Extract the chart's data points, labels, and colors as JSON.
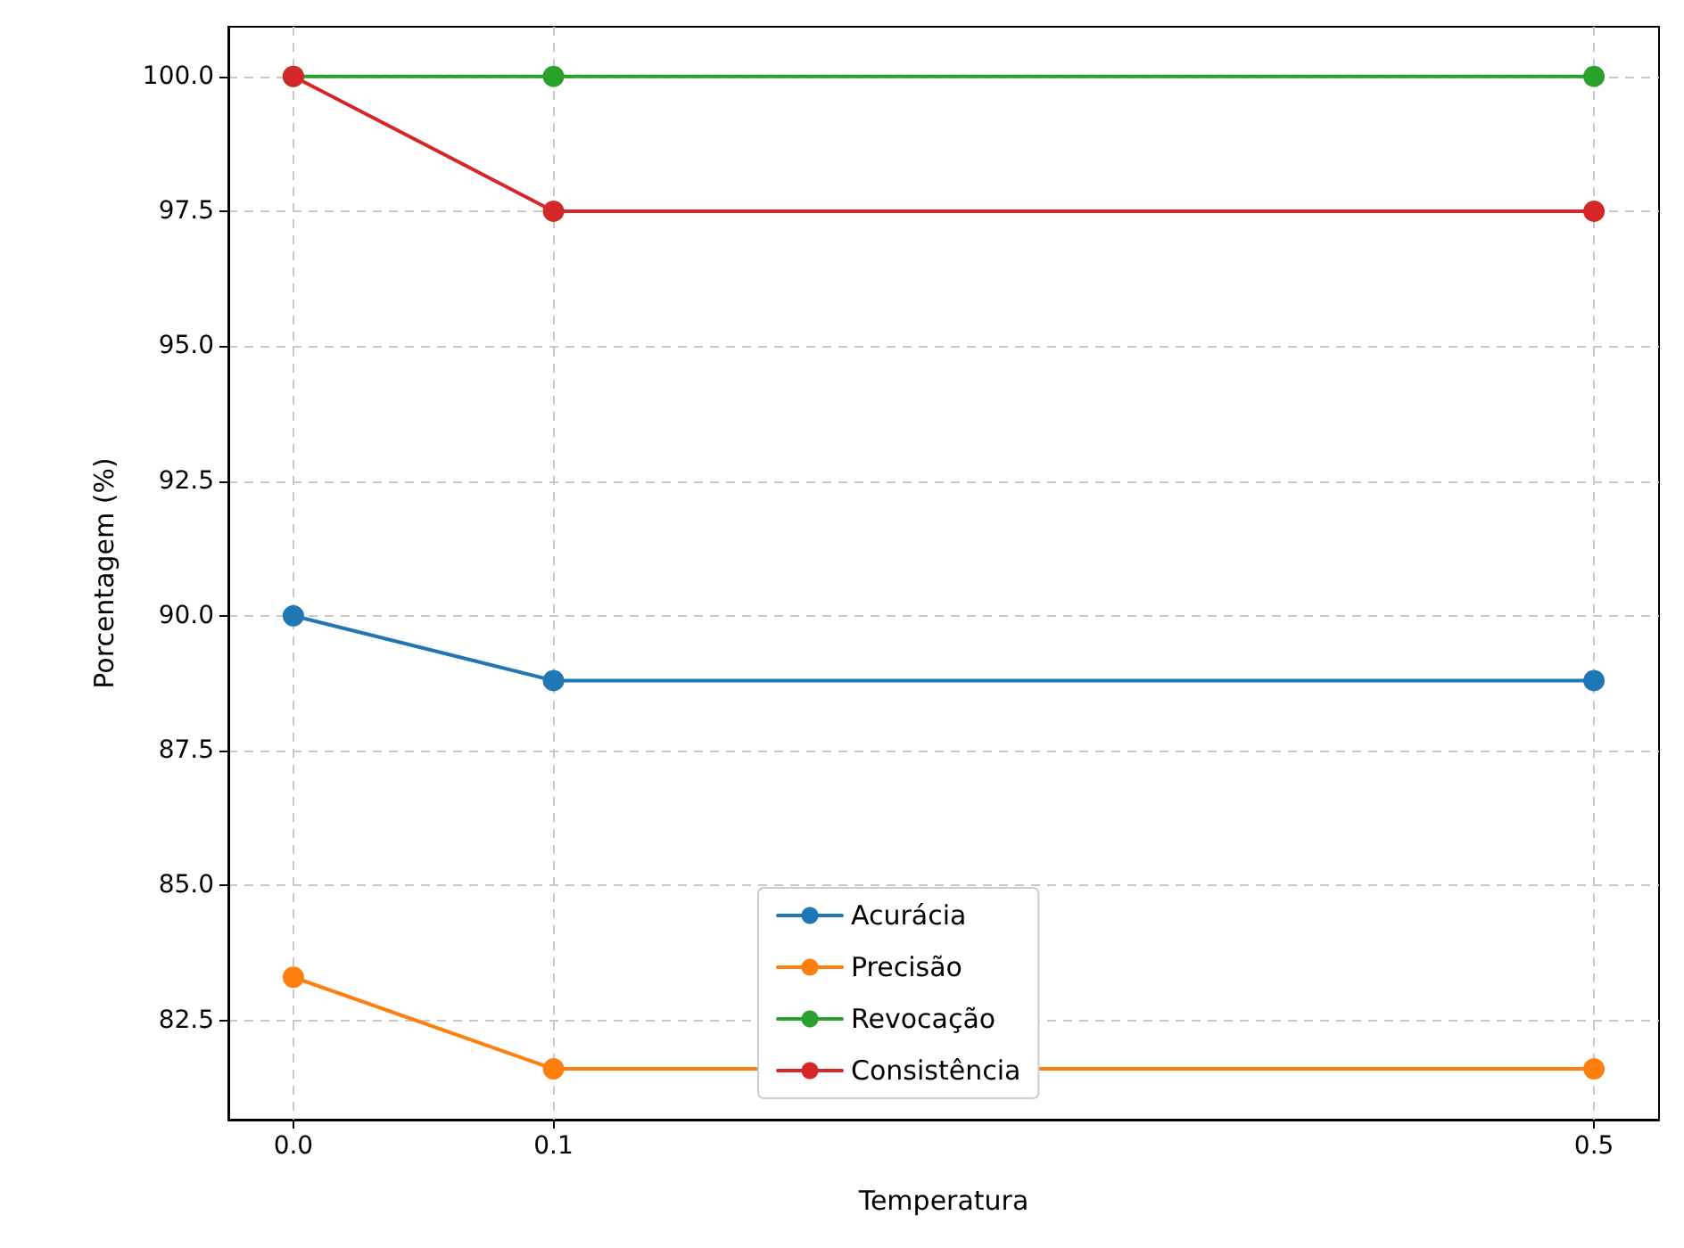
{
  "chart_data": {
    "type": "line",
    "xlabel": "Temperatura",
    "ylabel": "Porcentagem (%)",
    "x": [
      0,
      0.1,
      0.5
    ],
    "series": [
      {
        "name": "Acurácia",
        "color": "#1f77b4",
        "values": [
          90.0,
          88.8,
          88.8
        ]
      },
      {
        "name": "Precisão",
        "color": "#ff7f0e",
        "values": [
          83.3,
          81.6,
          81.6
        ]
      },
      {
        "name": "Revocação",
        "color": "#2ca02c",
        "values": [
          100.0,
          100.0,
          100.0
        ]
      },
      {
        "name": "Consistência",
        "color": "#d62728",
        "values": [
          100.0,
          97.5,
          97.5
        ]
      }
    ],
    "xlim": [
      -0.025,
      0.525
    ],
    "xticks": [
      {
        "value": 0,
        "label": "0.0"
      },
      {
        "value": 0.1,
        "label": "0.1"
      },
      {
        "value": 0.5,
        "label": "0.5"
      }
    ],
    "ylim": [
      80.66,
      100.92
    ],
    "yticks": [
      {
        "value": 82.5,
        "label": "82.5"
      },
      {
        "value": 85,
        "label": "85.0"
      },
      {
        "value": 87.5,
        "label": "87.5"
      },
      {
        "value": 90,
        "label": "90.0"
      },
      {
        "value": 92.5,
        "label": "92.5"
      },
      {
        "value": 95,
        "label": "95.0"
      },
      {
        "value": 97.5,
        "label": "97.5"
      },
      {
        "value": 100,
        "label": "100.0"
      }
    ],
    "grid": true,
    "legend": "bottom",
    "marker": "circle",
    "line_style": "solid"
  }
}
